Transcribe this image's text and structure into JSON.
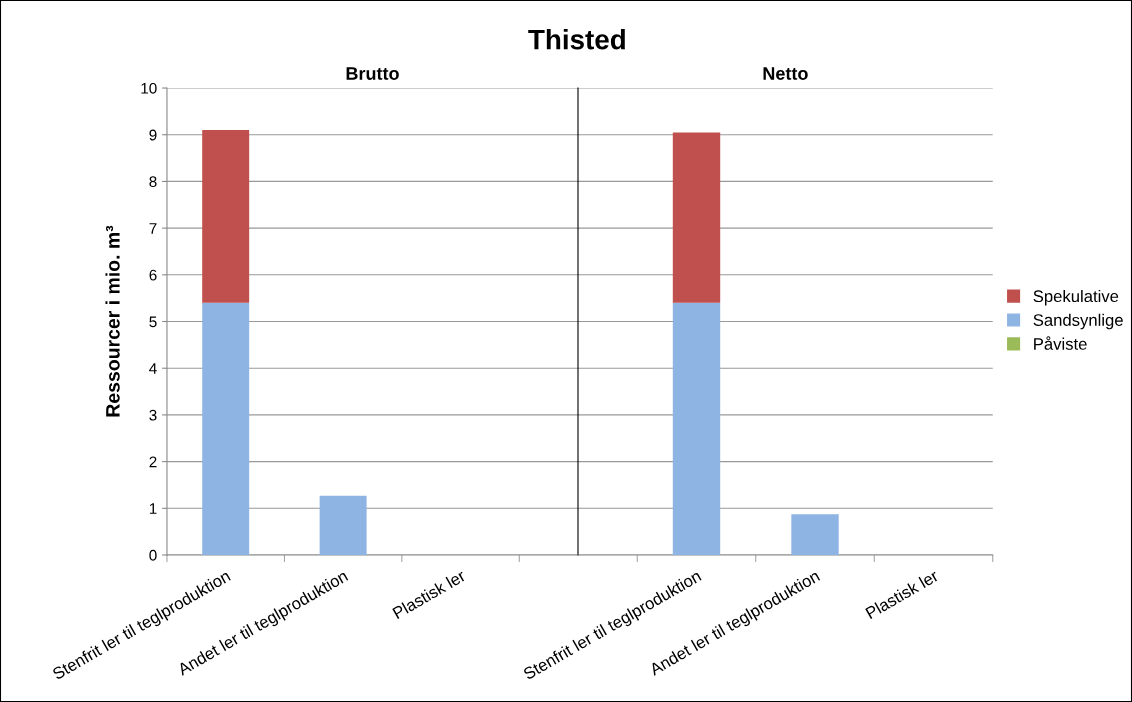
{
  "chart_data": [
    {
      "type": "bar",
      "title": "Thisted",
      "subtitle": "Brutto",
      "ylabel": "Ressourcer i mio. m³",
      "categories": [
        "Stenfrit ler til teglproduktion",
        "Andet ler til teglproduktion",
        "Plastisk ler"
      ],
      "stacked": true,
      "ylim": [
        0,
        10
      ],
      "yticks": [
        0,
        1,
        2,
        3,
        4,
        5,
        6,
        7,
        8,
        9,
        10
      ],
      "grid": "y",
      "series": [
        {
          "color": "#9bbb59",
          "values": [
            0,
            0,
            0
          ]
        },
        {
          "color": "#8eb4e3",
          "values": [
            5.4,
            1.27,
            0
          ]
        },
        {
          "color": "#c0504d",
          "values": [
            3.7,
            0,
            0
          ]
        }
      ]
    },
    {
      "type": "bar",
      "subtitle": "Netto",
      "categories": [
        "Stenfrit ler til teglproduktion",
        "Andet ler til teglproduktion",
        "Plastisk ler"
      ],
      "stacked": true,
      "ylim": [
        0,
        10
      ],
      "yticks": [
        0,
        1,
        2,
        3,
        4,
        5,
        6,
        7,
        8,
        9,
        10
      ],
      "grid": "y",
      "legend": "right",
      "tick_labels": "x",
      "series": [
        {
          "name": "Påviste",
          "color": "#9bbb59",
          "values": [
            0,
            0,
            0
          ]
        },
        {
          "name": "Sandsynlige",
          "color": "#8eb4e3",
          "values": [
            5.4,
            0.87,
            0
          ]
        },
        {
          "name": "Spekulative",
          "color": "#c0504d",
          "values": [
            3.65,
            0,
            0
          ]
        }
      ]
    }
  ]
}
